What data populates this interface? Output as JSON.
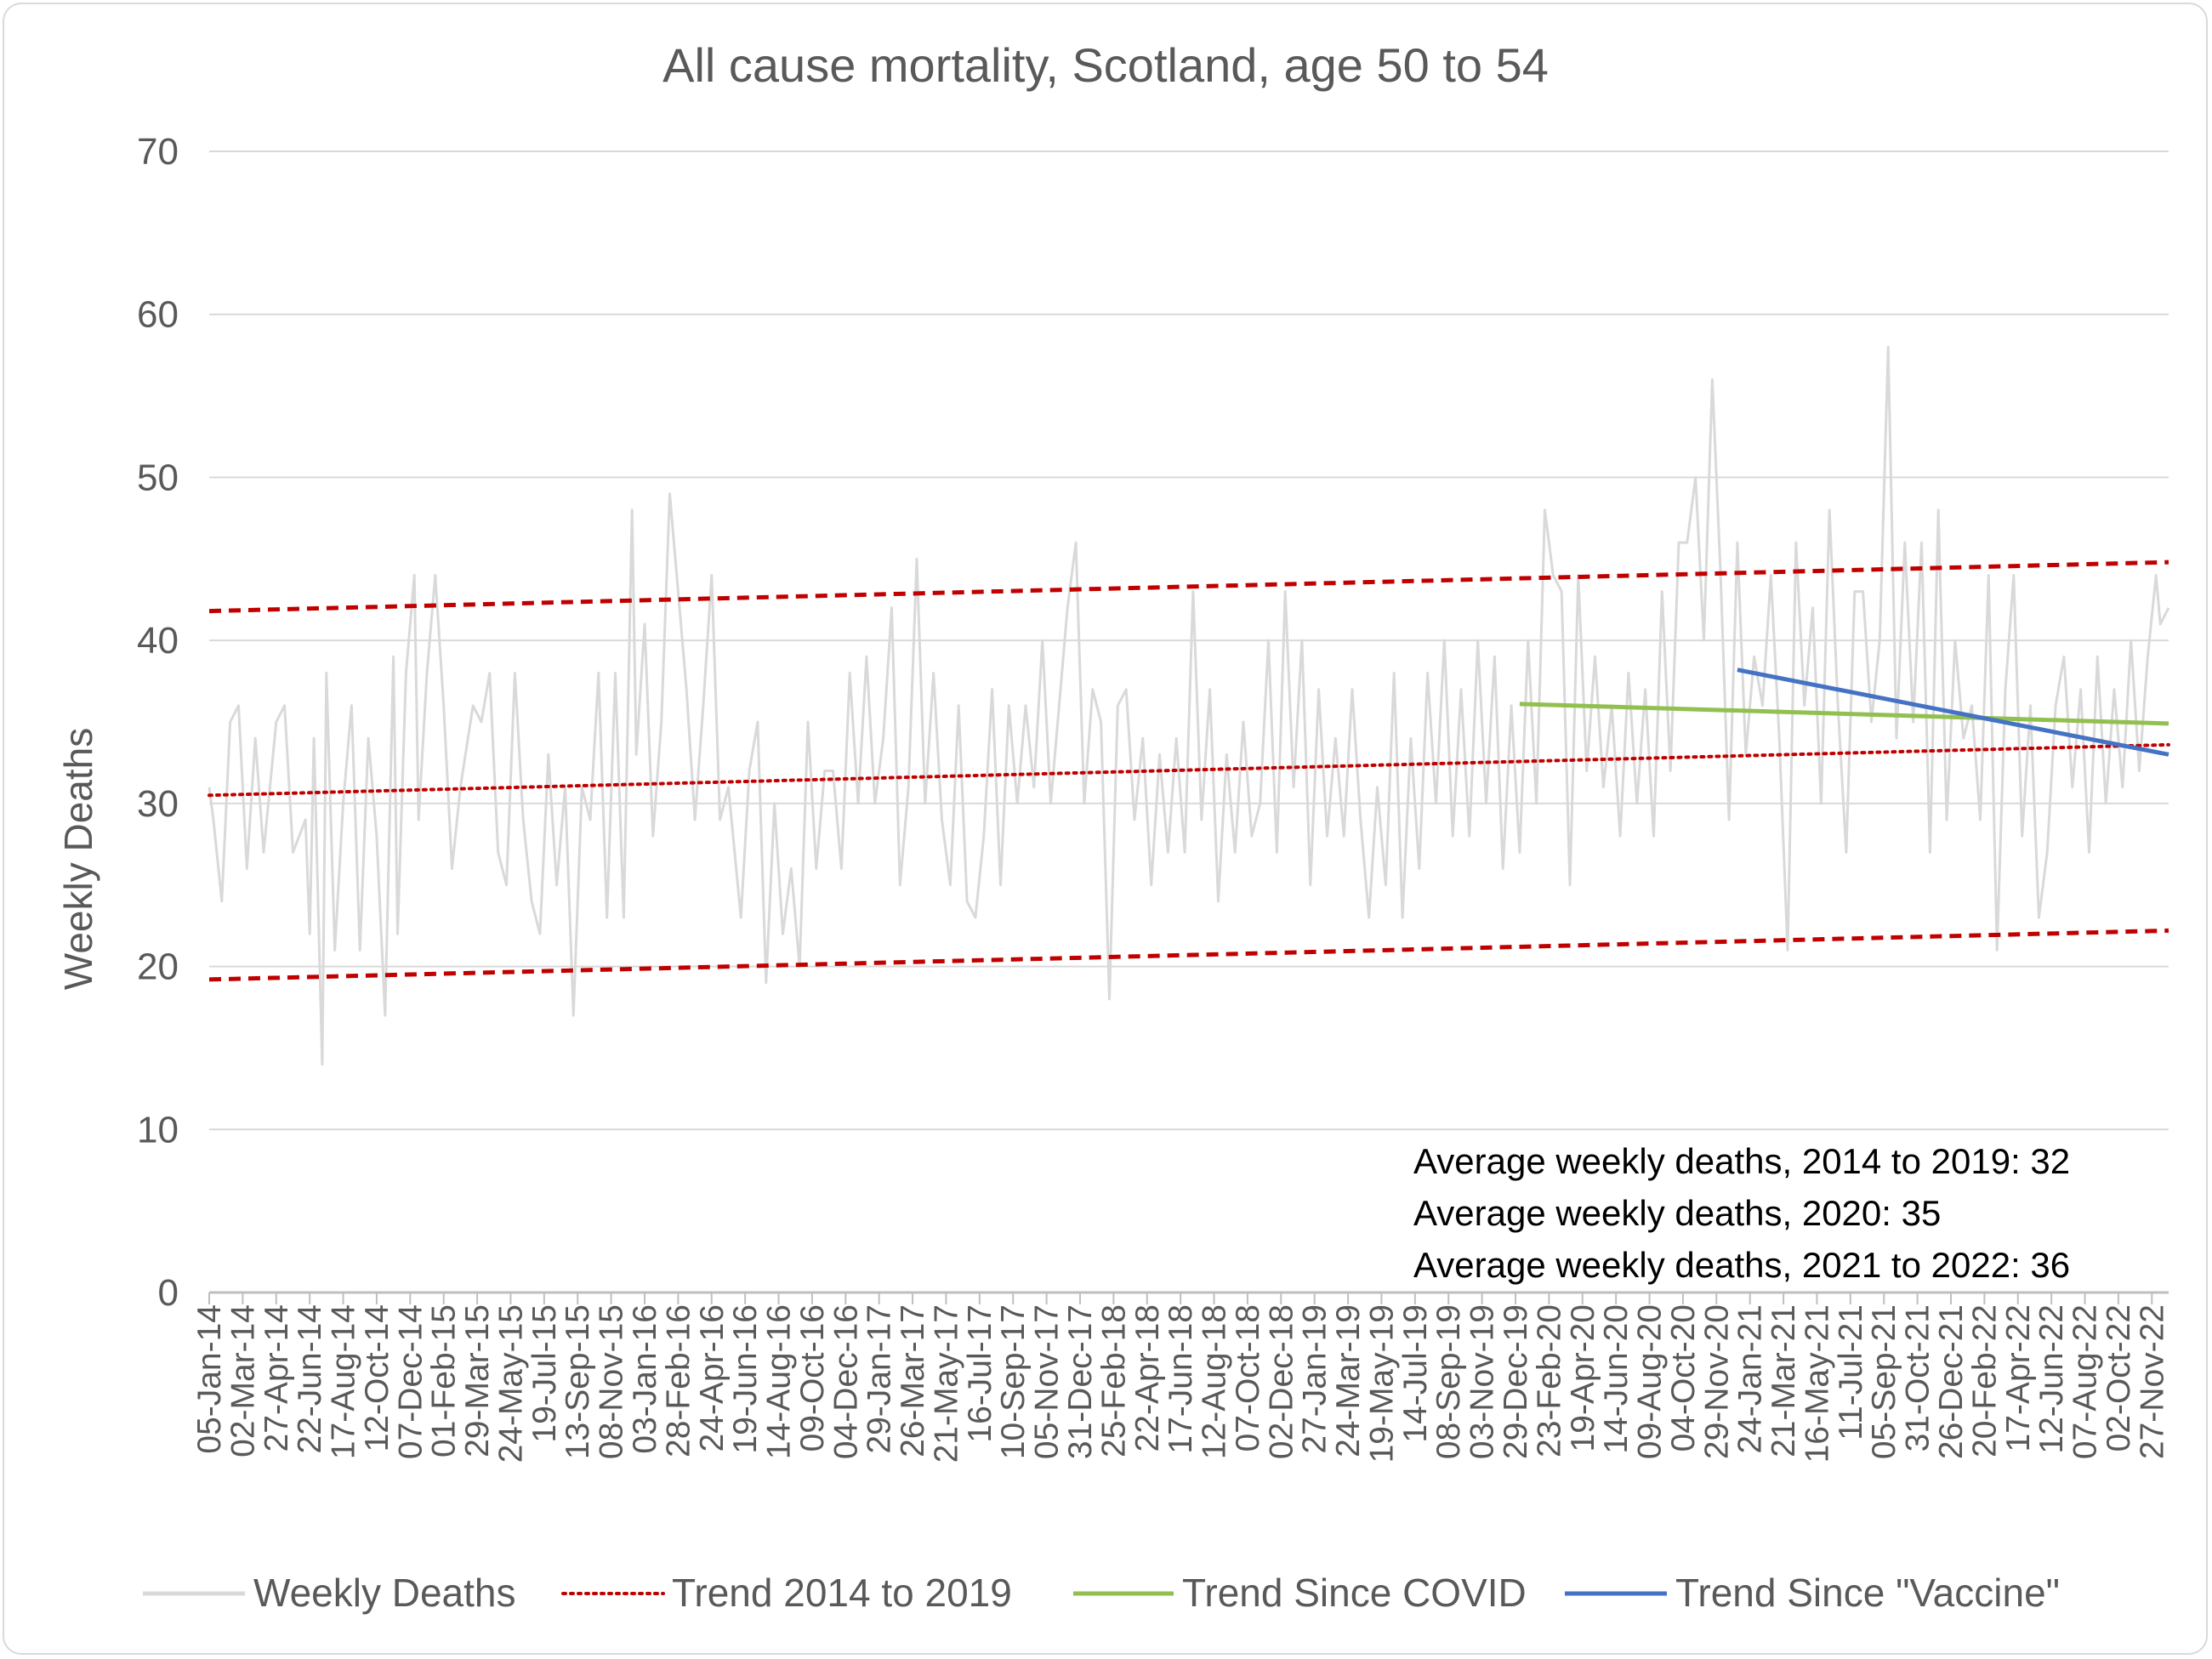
{
  "chart_data": {
    "type": "line",
    "title": "All cause mortality, Scotland, age 50 to 54",
    "xlabel": "",
    "ylabel": "Weekly Deaths",
    "ylim": [
      0,
      70
    ],
    "yticks": [
      "0",
      "10",
      "20",
      "30",
      "40",
      "50",
      "60",
      "70"
    ],
    "grid": true,
    "legend_position": "bottom",
    "x_tick_labels": [
      "05-Jan-14",
      "02-Mar-14",
      "27-Apr-14",
      "22-Jun-14",
      "17-Aug-14",
      "12-Oct-14",
      "07-Dec-14",
      "01-Feb-15",
      "29-Mar-15",
      "24-May-15",
      "19-Jul-15",
      "13-Sep-15",
      "08-Nov-15",
      "03-Jan-16",
      "28-Feb-16",
      "24-Apr-16",
      "19-Jun-16",
      "14-Aug-16",
      "09-Oct-16",
      "04-Dec-16",
      "29-Jan-17",
      "26-Mar-17",
      "21-May-17",
      "16-Jul-17",
      "10-Sep-17",
      "05-Nov-17",
      "31-Dec-17",
      "25-Feb-18",
      "22-Apr-18",
      "17-Jun-18",
      "12-Aug-18",
      "07-Oct-18",
      "02-Dec-18",
      "27-Jan-19",
      "24-Mar-19",
      "19-May-19",
      "14-Jul-19",
      "08-Sep-19",
      "03-Nov-19",
      "29-Dec-19",
      "23-Feb-20",
      "19-Apr-20",
      "14-Jun-20",
      "09-Aug-20",
      "04-Oct-20",
      "29-Nov-20",
      "24-Jan-21",
      "21-Mar-21",
      "16-May-21",
      "11-Jul-21",
      "05-Sep-21",
      "31-Oct-21",
      "26-Dec-21",
      "20-Feb-22",
      "17-Apr-22",
      "12-Jun-22",
      "07-Aug-22",
      "02-Oct-22",
      "27-Nov-22"
    ],
    "x_start": "05-Jan-14",
    "x_end": "25-Dec-22",
    "weekly_series_key_points": [
      [
        "05-Jan-14",
        31
      ],
      [
        "12-Jan-14",
        29
      ],
      [
        "26-Jan-14",
        24
      ],
      [
        "09-Feb-14",
        35
      ],
      [
        "23-Feb-14",
        36
      ],
      [
        "09-Mar-14",
        26
      ],
      [
        "23-Mar-14",
        34
      ],
      [
        "06-Apr-14",
        27
      ],
      [
        "27-Apr-14",
        35
      ],
      [
        "11-May-14",
        36
      ],
      [
        "25-May-14",
        27
      ],
      [
        "15-Jun-14",
        29
      ],
      [
        "22-Jun-14",
        22
      ],
      [
        "29-Jun-14",
        34
      ],
      [
        "13-Jul-14",
        14
      ],
      [
        "20-Jul-14",
        38
      ],
      [
        "03-Aug-14",
        21
      ],
      [
        "17-Aug-14",
        30
      ],
      [
        "31-Aug-14",
        36
      ],
      [
        "14-Sep-14",
        21
      ],
      [
        "28-Sep-14",
        34
      ],
      [
        "12-Oct-14",
        28
      ],
      [
        "26-Oct-14",
        17
      ],
      [
        "09-Nov-14",
        39
      ],
      [
        "16-Nov-14",
        22
      ],
      [
        "30-Nov-14",
        38
      ],
      [
        "14-Dec-14",
        44
      ],
      [
        "21-Dec-14",
        29
      ],
      [
        "04-Jan-15",
        38
      ],
      [
        "18-Jan-15",
        44
      ],
      [
        "01-Feb-15",
        36
      ],
      [
        "15-Feb-15",
        26
      ],
      [
        "01-Mar-15",
        31
      ],
      [
        "22-Mar-15",
        36
      ],
      [
        "05-Apr-15",
        35
      ],
      [
        "19-Apr-15",
        38
      ],
      [
        "03-May-15",
        27
      ],
      [
        "17-May-15",
        25
      ],
      [
        "31-May-15",
        38
      ],
      [
        "14-Jun-15",
        29
      ],
      [
        "28-Jun-15",
        24
      ],
      [
        "12-Jul-15",
        22
      ],
      [
        "26-Jul-15",
        33
      ],
      [
        "09-Aug-15",
        25
      ],
      [
        "23-Aug-15",
        31
      ],
      [
        "06-Sep-15",
        17
      ],
      [
        "20-Sep-15",
        31
      ],
      [
        "04-Oct-15",
        29
      ],
      [
        "18-Oct-15",
        38
      ],
      [
        "01-Nov-15",
        23
      ],
      [
        "15-Nov-15",
        38
      ],
      [
        "29-Nov-15",
        23
      ],
      [
        "13-Dec-15",
        48
      ],
      [
        "20-Dec-15",
        33
      ],
      [
        "03-Jan-16",
        41
      ],
      [
        "17-Jan-16",
        28
      ],
      [
        "31-Jan-16",
        35
      ],
      [
        "14-Feb-16",
        49
      ],
      [
        "28-Feb-16",
        43
      ],
      [
        "13-Mar-16",
        37
      ],
      [
        "27-Mar-16",
        29
      ],
      [
        "10-Apr-16",
        36
      ],
      [
        "24-Apr-16",
        44
      ],
      [
        "08-May-16",
        29
      ],
      [
        "22-May-16",
        31
      ],
      [
        "12-Jun-16",
        23
      ],
      [
        "26-Jun-16",
        32
      ],
      [
        "10-Jul-16",
        35
      ],
      [
        "24-Jul-16",
        19
      ],
      [
        "07-Aug-16",
        30
      ],
      [
        "21-Aug-16",
        22
      ],
      [
        "04-Sep-16",
        26
      ],
      [
        "18-Sep-16",
        20
      ],
      [
        "02-Oct-16",
        35
      ],
      [
        "16-Oct-16",
        26
      ],
      [
        "30-Oct-16",
        32
      ],
      [
        "13-Nov-16",
        32
      ],
      [
        "27-Nov-16",
        26
      ],
      [
        "11-Dec-16",
        38
      ],
      [
        "25-Dec-16",
        30
      ],
      [
        "08-Jan-17",
        39
      ],
      [
        "22-Jan-17",
        30
      ],
      [
        "05-Feb-17",
        34
      ],
      [
        "19-Feb-17",
        42
      ],
      [
        "05-Mar-17",
        25
      ],
      [
        "19-Mar-17",
        31
      ],
      [
        "02-Apr-17",
        45
      ],
      [
        "16-Apr-17",
        30
      ],
      [
        "30-Apr-17",
        38
      ],
      [
        "14-May-17",
        29
      ],
      [
        "28-May-17",
        25
      ],
      [
        "11-Jun-17",
        36
      ],
      [
        "25-Jun-17",
        24
      ],
      [
        "09-Jul-17",
        23
      ],
      [
        "23-Jul-17",
        28
      ],
      [
        "06-Aug-17",
        37
      ],
      [
        "20-Aug-17",
        25
      ],
      [
        "03-Sep-17",
        36
      ],
      [
        "17-Sep-17",
        30
      ],
      [
        "01-Oct-17",
        36
      ],
      [
        "15-Oct-17",
        31
      ],
      [
        "29-Oct-17",
        40
      ],
      [
        "12-Nov-17",
        30
      ],
      [
        "26-Nov-17",
        36
      ],
      [
        "10-Dec-17",
        42
      ],
      [
        "24-Dec-17",
        46
      ],
      [
        "07-Jan-18",
        30
      ],
      [
        "21-Jan-18",
        37
      ],
      [
        "04-Feb-18",
        35
      ],
      [
        "18-Feb-18",
        18
      ],
      [
        "04-Mar-18",
        36
      ],
      [
        "18-Mar-18",
        37
      ],
      [
        "01-Apr-18",
        29
      ],
      [
        "15-Apr-18",
        34
      ],
      [
        "29-Apr-18",
        25
      ],
      [
        "13-May-18",
        33
      ],
      [
        "27-May-18",
        27
      ],
      [
        "10-Jun-18",
        34
      ],
      [
        "24-Jun-18",
        27
      ],
      [
        "08-Jul-18",
        43
      ],
      [
        "22-Jul-18",
        29
      ],
      [
        "05-Aug-18",
        37
      ],
      [
        "19-Aug-18",
        24
      ],
      [
        "02-Sep-18",
        33
      ],
      [
        "16-Sep-18",
        27
      ],
      [
        "30-Sep-18",
        35
      ],
      [
        "14-Oct-18",
        28
      ],
      [
        "28-Oct-18",
        30
      ],
      [
        "11-Nov-18",
        40
      ],
      [
        "25-Nov-18",
        27
      ],
      [
        "09-Dec-18",
        43
      ],
      [
        "23-Dec-18",
        31
      ],
      [
        "06-Jan-19",
        40
      ],
      [
        "20-Jan-19",
        25
      ],
      [
        "03-Feb-19",
        37
      ],
      [
        "17-Feb-19",
        28
      ],
      [
        "03-Mar-19",
        34
      ],
      [
        "17-Mar-19",
        28
      ],
      [
        "31-Mar-19",
        37
      ],
      [
        "14-Apr-19",
        29
      ],
      [
        "28-Apr-19",
        23
      ],
      [
        "12-May-19",
        31
      ],
      [
        "26-May-19",
        25
      ],
      [
        "09-Jun-19",
        38
      ],
      [
        "23-Jun-19",
        23
      ],
      [
        "07-Jul-19",
        34
      ],
      [
        "21-Jul-19",
        26
      ],
      [
        "04-Aug-19",
        38
      ],
      [
        "18-Aug-19",
        30
      ],
      [
        "01-Sep-19",
        40
      ],
      [
        "15-Sep-19",
        28
      ],
      [
        "29-Sep-19",
        37
      ],
      [
        "13-Oct-19",
        28
      ],
      [
        "27-Oct-19",
        40
      ],
      [
        "10-Nov-19",
        30
      ],
      [
        "24-Nov-19",
        39
      ],
      [
        "08-Dec-19",
        26
      ],
      [
        "22-Dec-19",
        36
      ],
      [
        "05-Jan-20",
        27
      ],
      [
        "19-Jan-20",
        40
      ],
      [
        "02-Feb-20",
        30
      ],
      [
        "16-Feb-20",
        48
      ],
      [
        "01-Mar-20",
        44
      ],
      [
        "15-Mar-20",
        43
      ],
      [
        "29-Mar-20",
        25
      ],
      [
        "12-Apr-20",
        44
      ],
      [
        "26-Apr-20",
        32
      ],
      [
        "10-May-20",
        39
      ],
      [
        "24-May-20",
        31
      ],
      [
        "07-Jun-20",
        36
      ],
      [
        "21-Jun-20",
        28
      ],
      [
        "05-Jul-20",
        38
      ],
      [
        "19-Jul-20",
        30
      ],
      [
        "02-Aug-20",
        37
      ],
      [
        "16-Aug-20",
        28
      ],
      [
        "30-Aug-20",
        43
      ],
      [
        "13-Sep-20",
        32
      ],
      [
        "27-Sep-20",
        46
      ],
      [
        "11-Oct-20",
        46
      ],
      [
        "25-Oct-20",
        50
      ],
      [
        "08-Nov-20",
        40
      ],
      [
        "22-Nov-20",
        56
      ],
      [
        "06-Dec-20",
        44
      ],
      [
        "20-Dec-20",
        29
      ],
      [
        "03-Jan-21",
        46
      ],
      [
        "17-Jan-21",
        33
      ],
      [
        "31-Jan-21",
        39
      ],
      [
        "14-Feb-21",
        36
      ],
      [
        "28-Feb-21",
        44
      ],
      [
        "14-Mar-21",
        34
      ],
      [
        "28-Mar-21",
        21
      ],
      [
        "11-Apr-21",
        46
      ],
      [
        "25-Apr-21",
        36
      ],
      [
        "09-May-21",
        42
      ],
      [
        "23-May-21",
        30
      ],
      [
        "06-Jun-21",
        48
      ],
      [
        "20-Jun-21",
        36
      ],
      [
        "04-Jul-21",
        27
      ],
      [
        "18-Jul-21",
        43
      ],
      [
        "01-Aug-21",
        43
      ],
      [
        "15-Aug-21",
        35
      ],
      [
        "29-Aug-21",
        40
      ],
      [
        "12-Sep-21",
        58
      ],
      [
        "26-Sep-21",
        34
      ],
      [
        "10-Oct-21",
        46
      ],
      [
        "24-Oct-21",
        35
      ],
      [
        "07-Nov-21",
        46
      ],
      [
        "21-Nov-21",
        27
      ],
      [
        "05-Dec-21",
        48
      ],
      [
        "19-Dec-21",
        29
      ],
      [
        "02-Jan-22",
        40
      ],
      [
        "16-Jan-22",
        34
      ],
      [
        "30-Jan-22",
        36
      ],
      [
        "13-Feb-22",
        29
      ],
      [
        "27-Feb-22",
        44
      ],
      [
        "13-Mar-22",
        21
      ],
      [
        "27-Mar-22",
        37
      ],
      [
        "10-Apr-22",
        44
      ],
      [
        "24-Apr-22",
        28
      ],
      [
        "08-May-22",
        36
      ],
      [
        "22-May-22",
        23
      ],
      [
        "05-Jun-22",
        27
      ],
      [
        "19-Jun-22",
        36
      ],
      [
        "03-Jul-22",
        39
      ],
      [
        "17-Jul-22",
        31
      ],
      [
        "31-Jul-22",
        37
      ],
      [
        "14-Aug-22",
        27
      ],
      [
        "28-Aug-22",
        39
      ],
      [
        "11-Sep-22",
        30
      ],
      [
        "25-Sep-22",
        37
      ],
      [
        "09-Oct-22",
        31
      ],
      [
        "23-Oct-22",
        40
      ],
      [
        "06-Nov-22",
        32
      ],
      [
        "20-Nov-22",
        39
      ],
      [
        "04-Dec-22",
        44
      ],
      [
        "11-Dec-22",
        41
      ],
      [
        "25-Dec-22",
        42
      ]
    ],
    "series": [
      {
        "name": "Weekly Deaths",
        "color": "#d9d9d9",
        "style": "solid"
      },
      {
        "name": "Trend 2014 to 2019",
        "color": "#c00000",
        "style": "dotted",
        "x": [
          "05-Jan-14",
          "25-Dec-22"
        ],
        "values": [
          30.5,
          33.6
        ]
      },
      {
        "name": "Trend Since COVID",
        "color": "#92c050",
        "style": "solid",
        "x": [
          "05-Jan-20",
          "25-Dec-22"
        ],
        "values": [
          36.1,
          34.9
        ]
      },
      {
        "name": "Trend Since \"Vaccine\"",
        "color": "#4472c4",
        "style": "solid",
        "x": [
          "03-Jan-21",
          "25-Dec-22"
        ],
        "values": [
          38.2,
          33.0
        ]
      }
    ],
    "band_upper": {
      "color": "#c00000",
      "style": "dashed",
      "x": [
        "05-Jan-14",
        "25-Dec-22"
      ],
      "values": [
        41.8,
        44.8
      ]
    },
    "band_lower": {
      "color": "#c00000",
      "style": "dashed",
      "x": [
        "05-Jan-14",
        "25-Dec-22"
      ],
      "values": [
        19.2,
        22.2
      ]
    },
    "annotations": [
      "Average weekly deaths, 2014 to 2019: 32",
      "Average weekly deaths, 2020: 35",
      "Average weekly deaths, 2021 to 2022: 36"
    ]
  }
}
